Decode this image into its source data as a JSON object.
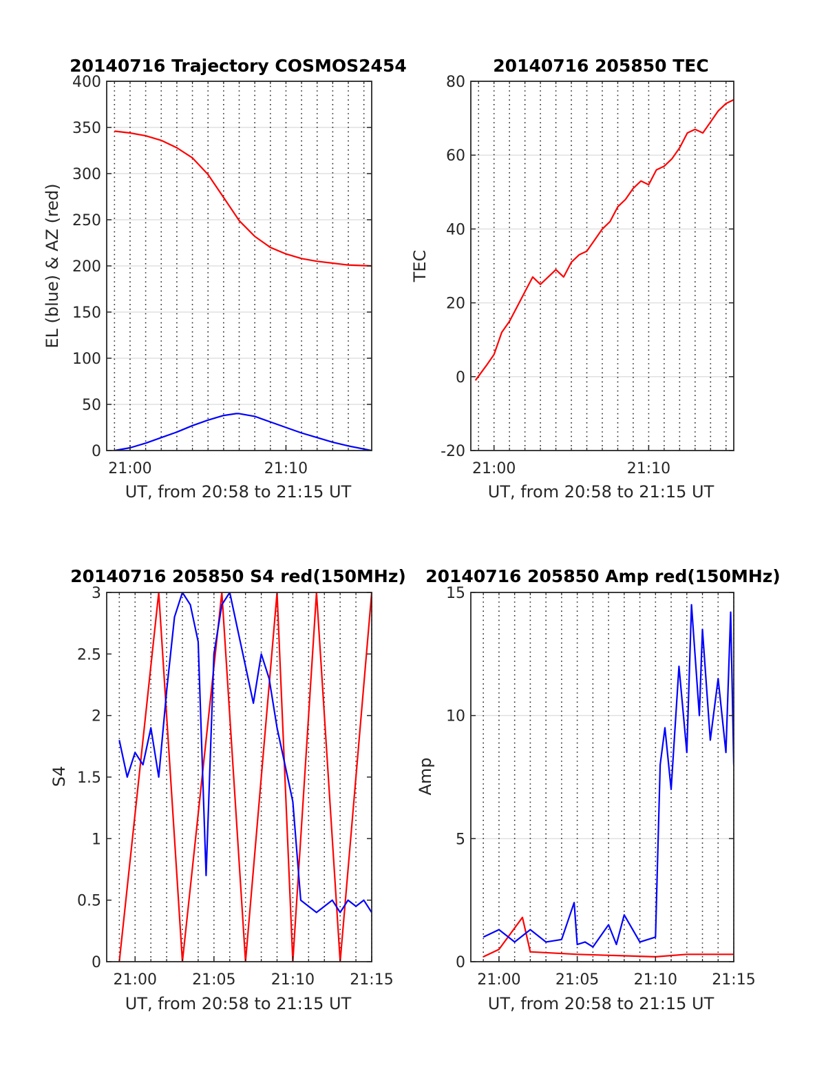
{
  "chart_data": [
    {
      "type": "line",
      "title": "20140716 Trajectory COSMOS2454",
      "xlabel": "UT, from 20:58 to 21:15 UT",
      "ylabel": "EL (blue) & AZ (red)",
      "xlim_minutes_after_20_00": [
        58.5,
        75.5
      ],
      "ylim": [
        0,
        400
      ],
      "yticks": [
        0,
        50,
        100,
        150,
        200,
        250,
        300,
        350,
        400
      ],
      "xticks": [
        {
          "minute": 60,
          "label": "21:00"
        },
        {
          "minute": 70,
          "label": "21:10"
        }
      ],
      "grid": "dotted vertical lines every 1 min; light horizontal at y ticks",
      "series": [
        {
          "color": "#ff0000",
          "x": [
            59,
            60,
            61,
            62,
            63,
            64,
            65,
            66,
            67,
            68,
            69,
            70,
            71,
            72,
            73,
            74,
            75.5
          ],
          "y": [
            346,
            344,
            341,
            336,
            328,
            317,
            299,
            274,
            249,
            232,
            220,
            213,
            208,
            205,
            203,
            201,
            200
          ]
        },
        {
          "color": "#0000ff",
          "x": [
            59,
            60,
            61,
            62,
            63,
            64,
            65,
            66,
            66.8,
            67,
            68,
            69,
            70,
            71,
            72,
            73,
            74,
            75.5
          ],
          "y": [
            0,
            3,
            8,
            14,
            20,
            27,
            33,
            38,
            40,
            40,
            37,
            31,
            25,
            19,
            14,
            9,
            5,
            0
          ]
        }
      ]
    },
    {
      "type": "line",
      "title": "20140716 205850 TEC",
      "xlabel": "UT, from 20:58 to 21:15 UT",
      "ylabel": "TEC",
      "xlim_minutes_after_20_00": [
        58.5,
        75.5
      ],
      "ylim": [
        -20,
        80
      ],
      "yticks": [
        -20,
        0,
        20,
        40,
        60,
        80
      ],
      "xticks": [
        {
          "minute": 60,
          "label": "21:00"
        },
        {
          "minute": 70,
          "label": "21:10"
        }
      ],
      "grid": "dotted vertical lines every 1 min; light horizontal at y ticks",
      "series": [
        {
          "color": "#ff0000",
          "x": [
            58.8,
            59.5,
            60,
            60.5,
            61,
            61.5,
            62,
            62.5,
            63,
            63.5,
            64,
            64.5,
            65,
            65.5,
            66,
            66.5,
            67,
            67.5,
            68,
            68.5,
            69,
            69.5,
            70,
            70.5,
            71,
            71.5,
            72,
            72.5,
            73,
            73.5,
            74,
            74.5,
            75,
            75.5
          ],
          "y": [
            -1,
            3,
            6,
            12,
            15,
            19,
            23,
            27,
            25,
            27,
            29,
            27,
            31,
            33,
            34,
            37,
            40,
            42,
            46,
            48,
            51,
            53,
            52,
            56,
            57,
            59,
            62,
            66,
            67,
            66,
            69,
            72,
            74,
            75
          ]
        }
      ]
    },
    {
      "type": "line",
      "title": "20140716 205850 S4 red(150MHz)",
      "xlabel": "UT, from 20:58 to 21:15 UT",
      "ylabel": "S4",
      "xlim_minutes_after_20_00": [
        58.2,
        75
      ],
      "ylim": [
        0,
        3
      ],
      "yticks": [
        0,
        0.5,
        1,
        1.5,
        2,
        2.5,
        3
      ],
      "xticks": [
        {
          "minute": 60,
          "label": "21:00"
        },
        {
          "minute": 65,
          "label": "21:05"
        },
        {
          "minute": 70,
          "label": "21:10"
        },
        {
          "minute": 75,
          "label": "21:15"
        }
      ],
      "grid": "dotted vertical lines every 1 min",
      "series": [
        {
          "color": "#ff0000",
          "x": [
            59,
            61.5,
            63,
            65.5,
            67,
            69,
            70,
            71.5,
            73,
            75
          ],
          "y": [
            0,
            3,
            0,
            3,
            0,
            3,
            0,
            3,
            0,
            3
          ]
        },
        {
          "color": "#0000ff",
          "x": [
            59,
            59.5,
            60,
            60.5,
            61,
            61.5,
            62,
            62.5,
            63,
            63.5,
            64,
            64.5,
            65,
            65.5,
            66,
            66.5,
            67,
            67.5,
            68,
            68.5,
            69,
            69.5,
            70,
            70.5,
            71,
            71.5,
            72,
            72.5,
            73,
            73.5,
            74,
            74.5,
            75
          ],
          "y": [
            1.8,
            1.5,
            1.7,
            1.6,
            1.9,
            1.5,
            2.2,
            2.8,
            3,
            2.9,
            2.6,
            0.7,
            2.5,
            2.9,
            3,
            2.7,
            2.4,
            2.1,
            2.5,
            2.3,
            1.9,
            1.6,
            1.3,
            0.5,
            0.45,
            0.4,
            0.45,
            0.5,
            0.4,
            0.5,
            0.45,
            0.5,
            0.4
          ]
        }
      ]
    },
    {
      "type": "line",
      "title": "20140716 205850 Amp red(150MHz)",
      "xlabel": "UT, from 20:58 to 21:15 UT",
      "ylabel": "Amp",
      "xlim_minutes_after_20_00": [
        58.2,
        75
      ],
      "ylim": [
        0,
        15
      ],
      "yticks": [
        0,
        5,
        10,
        15
      ],
      "xticks": [
        {
          "minute": 60,
          "label": "21:00"
        },
        {
          "minute": 65,
          "label": "21:05"
        },
        {
          "minute": 70,
          "label": "21:10"
        },
        {
          "minute": 75,
          "label": "21:15"
        }
      ],
      "grid": "dotted vertical lines every 1 min; light horizontal at y ticks",
      "series": [
        {
          "color": "#ff0000",
          "x": [
            59,
            60,
            61.5,
            62,
            65,
            70,
            72,
            75
          ],
          "y": [
            0.2,
            0.5,
            1.8,
            0.4,
            0.3,
            0.2,
            0.3,
            0.3
          ]
        },
        {
          "color": "#0000ff",
          "x": [
            59,
            60,
            61,
            62,
            63,
            64,
            64.8,
            65,
            65.5,
            66,
            67,
            67.5,
            68,
            69,
            70,
            70.3,
            70.6,
            71,
            71.5,
            72,
            72.3,
            72.8,
            73,
            73.5,
            74,
            74.5,
            74.8,
            75
          ],
          "y": [
            1.0,
            1.3,
            0.8,
            1.3,
            0.8,
            0.9,
            2.4,
            0.7,
            0.8,
            0.6,
            1.5,
            0.7,
            1.9,
            0.8,
            1.0,
            8.0,
            9.5,
            7.0,
            12.0,
            8.5,
            14.5,
            10.0,
            13.5,
            9.0,
            11.5,
            8.5,
            14.2,
            8.0
          ]
        }
      ]
    }
  ]
}
